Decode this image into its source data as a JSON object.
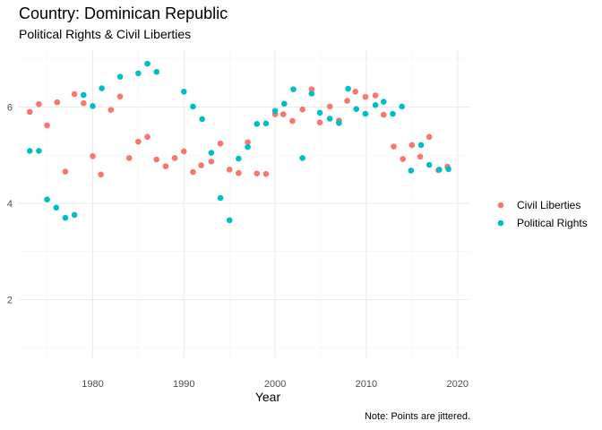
{
  "chart_data": {
    "type": "scatter",
    "title": "Country: Dominican Republic",
    "subtitle": "Political Rights & Civil Liberties",
    "xlabel": "Year",
    "ylabel": "",
    "caption": "Note: Points are jittered.",
    "xlim": [
      1971.9,
      2021.4
    ],
    "ylim": [
      0.8,
      7.2
    ],
    "xticks": [
      1980,
      1990,
      2000,
      2010,
      2020
    ],
    "yticks": [
      2,
      4,
      6
    ],
    "grid": true,
    "legend_position": "right",
    "series": [
      {
        "name": "Civil Liberties",
        "color": "#F8766D",
        "points": [
          [
            1973.1,
            5.9
          ],
          [
            1974.1,
            6.06
          ],
          [
            1975.0,
            5.62
          ],
          [
            1976.1,
            6.1
          ],
          [
            1977.0,
            4.66
          ],
          [
            1978.0,
            6.27
          ],
          [
            1979.0,
            6.08
          ],
          [
            1980.0,
            4.98
          ],
          [
            1980.9,
            4.6
          ],
          [
            1982.0,
            5.94
          ],
          [
            1983.0,
            6.22
          ],
          [
            1984.0,
            4.94
          ],
          [
            1985.0,
            5.28
          ],
          [
            1986.0,
            5.38
          ],
          [
            1987.0,
            4.91
          ],
          [
            1988.0,
            4.77
          ],
          [
            1989.0,
            4.94
          ],
          [
            1990.0,
            5.08
          ],
          [
            1991.0,
            4.65
          ],
          [
            1991.9,
            4.79
          ],
          [
            1993.0,
            4.87
          ],
          [
            1994.0,
            5.24
          ],
          [
            1995.0,
            4.7
          ],
          [
            1996.0,
            4.63
          ],
          [
            1997.0,
            5.27
          ],
          [
            1998.0,
            4.62
          ],
          [
            1999.0,
            4.61
          ],
          [
            2000.0,
            5.85
          ],
          [
            2000.9,
            5.85
          ],
          [
            2001.9,
            5.71
          ],
          [
            2003.0,
            5.95
          ],
          [
            2004.0,
            6.37
          ],
          [
            2004.9,
            5.68
          ],
          [
            2006.0,
            6.01
          ],
          [
            2007.0,
            5.72
          ],
          [
            2007.9,
            6.13
          ],
          [
            2008.8,
            6.32
          ],
          [
            2009.9,
            6.21
          ],
          [
            2011.0,
            6.24
          ],
          [
            2011.9,
            5.84
          ],
          [
            2013.0,
            5.18
          ],
          [
            2014.0,
            4.92
          ],
          [
            2015.0,
            5.21
          ],
          [
            2015.9,
            4.97
          ],
          [
            2016.9,
            5.38
          ],
          [
            2017.9,
            4.69
          ],
          [
            2018.9,
            4.76
          ]
        ]
      },
      {
        "name": "Political Rights",
        "color": "#00BFC4",
        "points": [
          [
            1973.1,
            5.09
          ],
          [
            1974.1,
            5.09
          ],
          [
            1975.0,
            4.08
          ],
          [
            1976.0,
            3.91
          ],
          [
            1977.0,
            3.7
          ],
          [
            1978.0,
            3.76
          ],
          [
            1979.0,
            6.25
          ],
          [
            1980.0,
            6.02
          ],
          [
            1981.0,
            6.39
          ],
          [
            1983.0,
            6.63
          ],
          [
            1985.0,
            6.7
          ],
          [
            1986.0,
            6.9
          ],
          [
            1987.0,
            6.73
          ],
          [
            1990.0,
            6.32
          ],
          [
            1991.0,
            6.01
          ],
          [
            1992.0,
            5.75
          ],
          [
            1993.0,
            5.05
          ],
          [
            1994.0,
            4.11
          ],
          [
            1995.0,
            3.65
          ],
          [
            1996.0,
            4.93
          ],
          [
            1997.0,
            5.17
          ],
          [
            1998.0,
            5.65
          ],
          [
            1999.0,
            5.66
          ],
          [
            2000.0,
            5.92
          ],
          [
            2001.0,
            6.07
          ],
          [
            2002.0,
            6.37
          ],
          [
            2003.0,
            4.94
          ],
          [
            2004.0,
            6.28
          ],
          [
            2004.9,
            5.88
          ],
          [
            2006.0,
            5.76
          ],
          [
            2007.0,
            5.67
          ],
          [
            2008.0,
            6.38
          ],
          [
            2008.9,
            5.96
          ],
          [
            2009.9,
            5.86
          ],
          [
            2011.0,
            6.04
          ],
          [
            2011.9,
            6.11
          ],
          [
            2012.9,
            5.86
          ],
          [
            2013.9,
            6.01
          ],
          [
            2014.9,
            4.68
          ],
          [
            2016.0,
            5.21
          ],
          [
            2016.9,
            4.8
          ],
          [
            2018.0,
            4.7
          ],
          [
            2019.0,
            4.71
          ]
        ]
      }
    ]
  }
}
